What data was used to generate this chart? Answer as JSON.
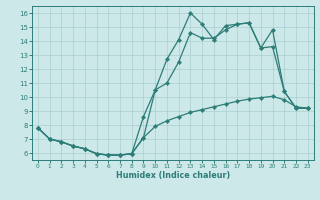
{
  "xlabel": "Humidex (Indice chaleur)",
  "xlim": [
    -0.5,
    23.5
  ],
  "ylim": [
    5.5,
    16.5
  ],
  "xticks": [
    0,
    1,
    2,
    3,
    4,
    5,
    6,
    7,
    8,
    9,
    10,
    11,
    12,
    13,
    14,
    15,
    16,
    17,
    18,
    19,
    20,
    21,
    22,
    23
  ],
  "yticks": [
    6,
    7,
    8,
    9,
    10,
    11,
    12,
    13,
    14,
    15,
    16
  ],
  "bg_color": "#cce8e8",
  "line_color": "#2d7d78",
  "grid_color": "#aacfcf",
  "top_x": [
    0,
    1,
    2,
    3,
    4,
    5,
    6,
    7,
    8,
    9,
    10,
    11,
    12,
    13,
    14,
    15,
    16,
    17,
    18,
    19,
    20,
    21,
    22,
    23
  ],
  "top_y": [
    7.8,
    7.0,
    6.8,
    6.5,
    6.3,
    5.95,
    5.85,
    5.85,
    5.95,
    7.1,
    10.5,
    12.7,
    14.1,
    16.0,
    15.2,
    14.1,
    15.1,
    15.2,
    15.3,
    13.5,
    14.8,
    10.4,
    9.2,
    9.2
  ],
  "mid_x": [
    0,
    1,
    2,
    3,
    4,
    5,
    6,
    7,
    8,
    9,
    10,
    11,
    12,
    13,
    14,
    15,
    16,
    17,
    18,
    19,
    20,
    21,
    22,
    23
  ],
  "mid_y": [
    7.8,
    7.0,
    6.8,
    6.5,
    6.3,
    5.95,
    5.85,
    5.85,
    5.95,
    8.6,
    10.5,
    11.0,
    12.5,
    14.6,
    14.2,
    14.2,
    14.8,
    15.2,
    15.3,
    13.5,
    13.6,
    10.4,
    9.2,
    9.2
  ],
  "bot_x": [
    0,
    1,
    2,
    3,
    4,
    5,
    6,
    7,
    8,
    9,
    10,
    11,
    12,
    13,
    14,
    15,
    16,
    17,
    18,
    19,
    20,
    21,
    22,
    23
  ],
  "bot_y": [
    7.8,
    7.0,
    6.8,
    6.5,
    6.3,
    5.95,
    5.85,
    5.85,
    5.95,
    7.1,
    7.9,
    8.3,
    8.6,
    8.9,
    9.1,
    9.3,
    9.5,
    9.7,
    9.85,
    9.95,
    10.05,
    9.8,
    9.3,
    9.2
  ]
}
